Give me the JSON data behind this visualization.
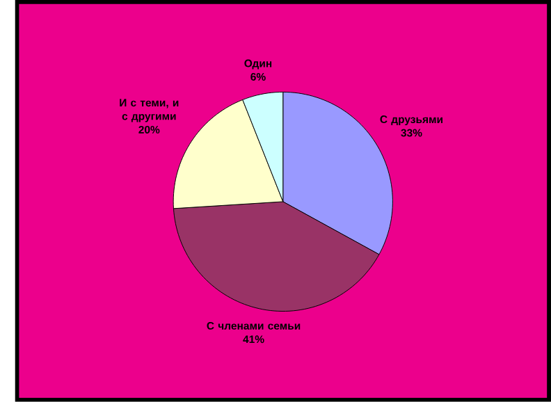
{
  "chart_data": {
    "type": "pie",
    "categories": [
      "С друзьями",
      "С членами семьи",
      "И с теми, и с другими",
      "Один"
    ],
    "values": [
      33,
      41,
      20,
      6
    ],
    "colors": [
      "#9999ff",
      "#993366",
      "#ffffcc",
      "#ccffff"
    ],
    "value_labels": [
      "33%",
      "41%",
      "20%",
      "6%"
    ]
  }
}
